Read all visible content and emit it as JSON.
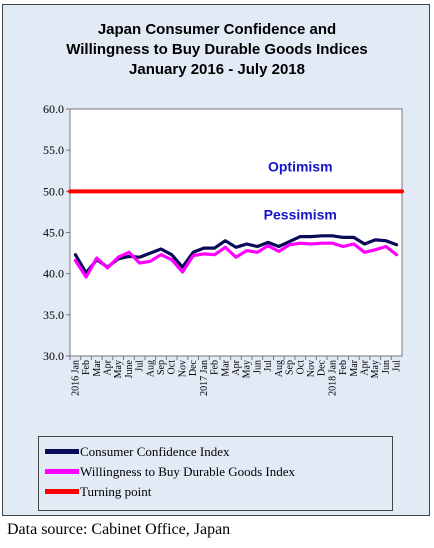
{
  "title_lines": [
    "Japan Consumer Confidence and",
    "Willingness to Buy Durable Goods Indices",
    "January 2016 - July 2018"
  ],
  "source": "Data source: Cabinet Office, Japan",
  "colors": {
    "frame_bg": "#e2eaf6",
    "plot_bg": "#ffffff",
    "consumer_confidence": "#0a0a5a",
    "durable_goods": "#ff00ff",
    "turning_point": "#ff0000",
    "annotation": "#1515c8"
  },
  "chart_data": {
    "type": "line",
    "ylim": [
      30.0,
      60.0
    ],
    "yticks": [
      "30.0",
      "35.0",
      "40.0",
      "45.0",
      "50.0",
      "55.0",
      "60.0"
    ],
    "grid": false,
    "legend_placement": "bottom",
    "categories": [
      "2016 Jan",
      "Feb",
      "Mar",
      "Apr",
      "May",
      "June",
      "Jul",
      "Aug",
      "Sep",
      "Oct",
      "Nov",
      "Dec",
      "2017 Jan",
      "Feb",
      "Mar",
      "Apr",
      "May",
      "Jun",
      "Jul",
      "Aug",
      "Sep",
      "Oct",
      "Nov",
      "Dec",
      "2018 Jan",
      "Feb",
      "Mar",
      "Apr",
      "May",
      "Jun",
      "Jul"
    ],
    "series": [
      {
        "name": "Consumer Confidence Index",
        "color": "#0a0a5a",
        "values": [
          42.3,
          40.1,
          41.7,
          40.8,
          41.8,
          42.1,
          42.0,
          42.5,
          43.0,
          42.3,
          40.8,
          42.6,
          43.1,
          43.1,
          44.0,
          43.2,
          43.6,
          43.3,
          43.8,
          43.3,
          43.9,
          44.5,
          44.5,
          44.6,
          44.6,
          44.4,
          44.4,
          43.6,
          44.1,
          44.0,
          43.5
        ]
      },
      {
        "name": "Willingness to Buy Durable Goods Index",
        "color": "#ff00ff",
        "values": [
          41.6,
          39.6,
          41.9,
          40.7,
          42.0,
          42.6,
          41.3,
          41.5,
          42.3,
          41.7,
          40.2,
          42.2,
          42.4,
          42.3,
          43.2,
          42.0,
          42.8,
          42.6,
          43.4,
          42.7,
          43.5,
          43.7,
          43.6,
          43.7,
          43.7,
          43.3,
          43.6,
          42.6,
          42.9,
          43.3,
          42.3
        ]
      },
      {
        "name": "Turning point",
        "color": "#ff0000",
        "values": [
          50.0,
          50.0,
          50.0,
          50.0,
          50.0,
          50.0,
          50.0,
          50.0,
          50.0,
          50.0,
          50.0,
          50.0,
          50.0,
          50.0,
          50.0,
          50.0,
          50.0,
          50.0,
          50.0,
          50.0,
          50.0,
          50.0,
          50.0,
          50.0,
          50.0,
          50.0,
          50.0,
          50.0,
          50.0,
          50.0,
          50.0
        ]
      }
    ],
    "annotations": [
      {
        "text": "Optimism",
        "x_category": "Oct",
        "x_index": 21,
        "y": 53.0
      },
      {
        "text": "Pessimism",
        "x_category": "Oct",
        "x_index": 21,
        "y": 47.2
      }
    ]
  }
}
